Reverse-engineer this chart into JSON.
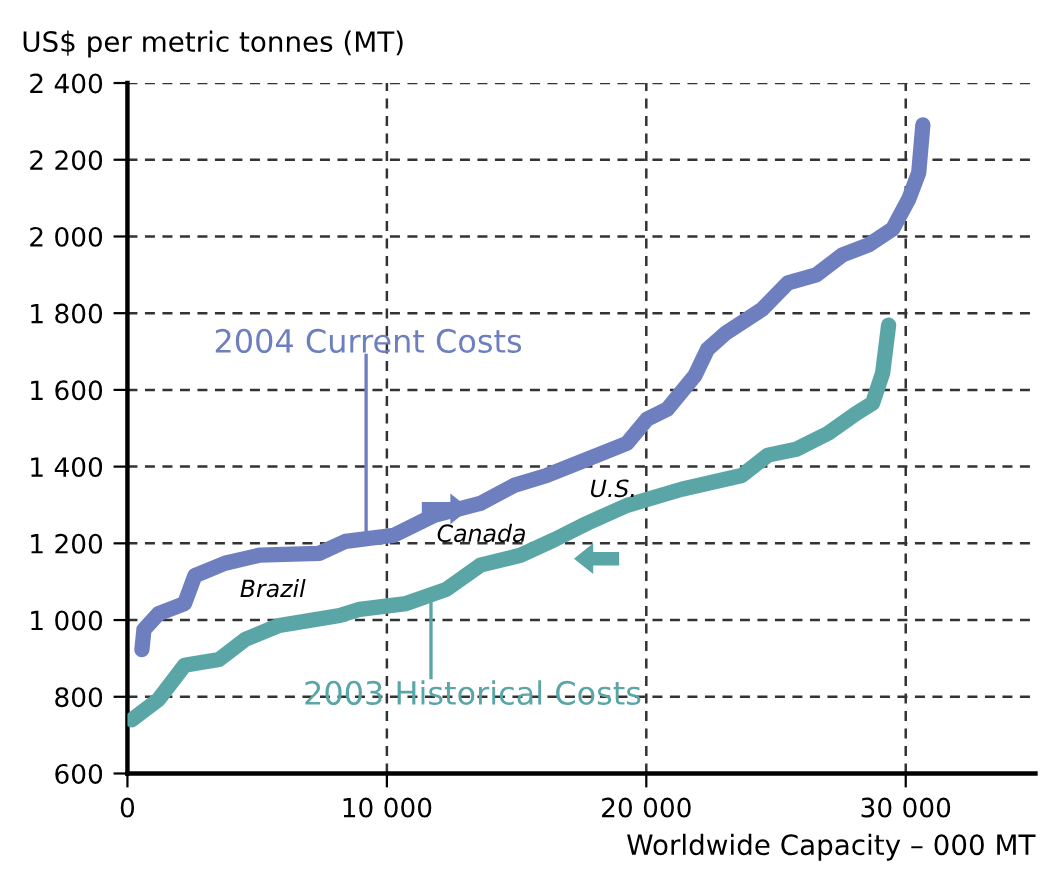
{
  "chart_data": {
    "type": "line",
    "ylabel": "US$ per metric tonnes (MT)",
    "xlabel": "Worldwide Capacity – 000 MT",
    "xlim": [
      0,
      35000
    ],
    "ylim": [
      600,
      2400
    ],
    "xticks": [
      0,
      {
        "value": 10000,
        "label": "10 000"
      },
      {
        "value": 20000,
        "label": "20 000"
      },
      {
        "value": 30000,
        "label": "30 000"
      }
    ],
    "yticks": [
      600,
      800,
      {
        "value": 1000,
        "label": "1 000"
      },
      {
        "value": 1200,
        "label": "1 200"
      },
      {
        "value": 1400,
        "label": "1 400"
      },
      {
        "value": 1600,
        "label": "1 600"
      },
      {
        "value": 1800,
        "label": "1 800"
      },
      {
        "value": 2000,
        "label": "2 000"
      },
      {
        "value": 2200,
        "label": "2 200"
      },
      {
        "value": 2400,
        "label": "2 400"
      }
    ],
    "grid": true,
    "line_style": "solid",
    "marker": "none",
    "legend": "center",
    "series": [
      {
        "name": "2004 Current Costs",
        "color": "#6e7fbf",
        "x": [
          558,
          636,
          1200,
          2200,
          2600,
          3760,
          5080,
          7400,
          8400,
          10270,
          11820,
          13600,
          14900,
          16160,
          17710,
          19260,
          20030,
          20810,
          21880,
          22360,
          23060,
          24460,
          25460,
          26550,
          27560,
          28570,
          29500,
          30120,
          30500,
          30660
        ],
        "values": [
          923,
          975,
          1017,
          1043,
          1116,
          1148,
          1169,
          1174,
          1205,
          1221,
          1273,
          1304,
          1351,
          1377,
          1419,
          1461,
          1524,
          1550,
          1638,
          1706,
          1748,
          1810,
          1879,
          1900,
          1952,
          1978,
          2020,
          2098,
          2166,
          2291
        ]
      },
      {
        "name": "2003 Historical Costs",
        "color": "#5aa6a6",
        "x": [
          170,
          1200,
          2200,
          3530,
          4550,
          5850,
          8180,
          8950,
          10740,
          12290,
          13600,
          15150,
          16470,
          17710,
          19260,
          21360,
          23680,
          24690,
          25770,
          27010,
          28100,
          28720,
          29110,
          29340
        ],
        "values": [
          740,
          793,
          882,
          897,
          950,
          986,
          1012,
          1028,
          1043,
          1080,
          1143,
          1169,
          1210,
          1252,
          1299,
          1341,
          1377,
          1430,
          1445,
          1487,
          1539,
          1565,
          1644,
          1769
        ]
      }
    ],
    "annotations": [
      "Brazil",
      "Canada",
      "U.S."
    ]
  }
}
